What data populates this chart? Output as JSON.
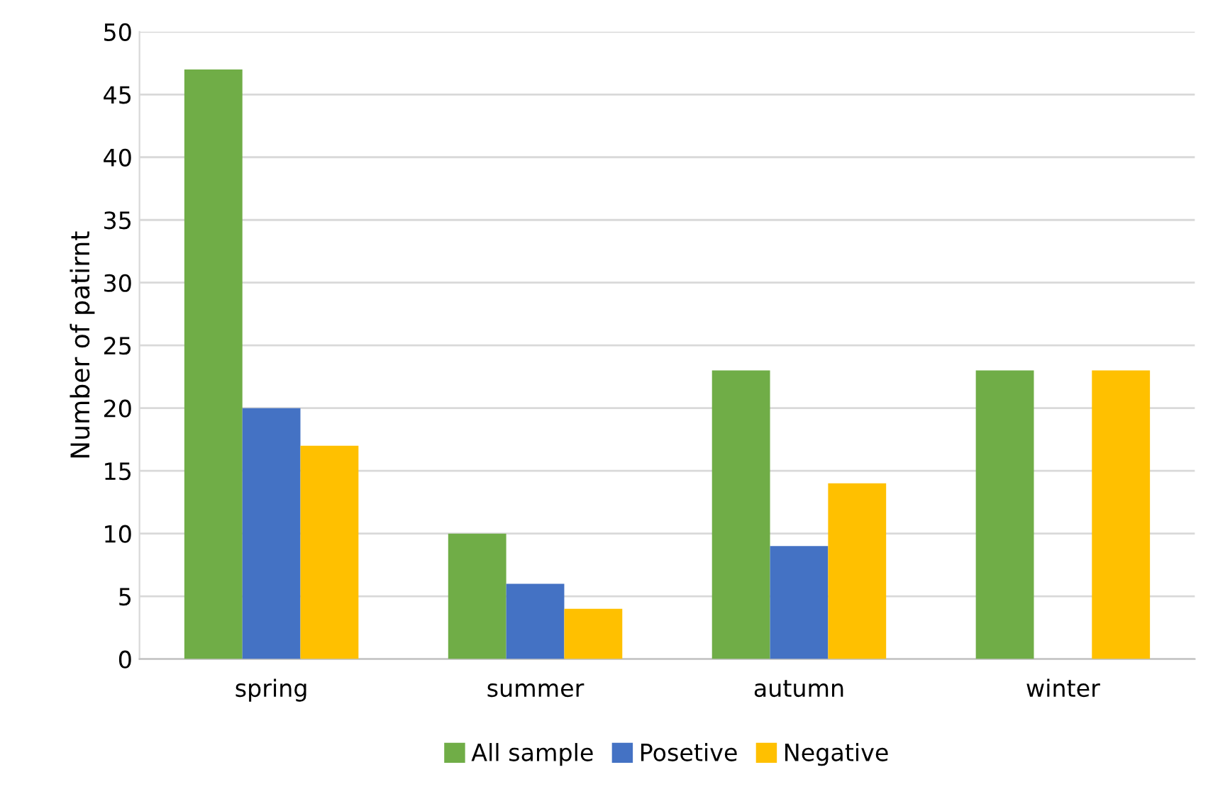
{
  "chart_data": {
    "type": "bar",
    "ylabel": "Number of patirnt",
    "categories": [
      "spring",
      "summer",
      "autumn",
      "winter"
    ],
    "series": [
      {
        "name": "All sample",
        "color": "#70ad47",
        "values": [
          47,
          10,
          23,
          23
        ]
      },
      {
        "name": "Posetive",
        "color": "#4472c4",
        "values": [
          20,
          6,
          9,
          0
        ]
      },
      {
        "name": "Negative",
        "color": "#ffc000",
        "values": [
          17,
          4,
          14,
          23
        ]
      }
    ],
    "ylim": [
      0,
      50
    ],
    "yticks": [
      0,
      5,
      10,
      15,
      20,
      25,
      30,
      35,
      40,
      45,
      50
    ],
    "grid": "y",
    "legend": "bottom"
  }
}
